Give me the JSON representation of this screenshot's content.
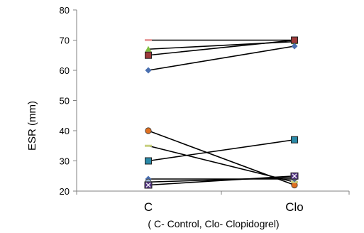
{
  "chart_data": {
    "type": "line",
    "title": "",
    "ylabel": "ESR (mm)",
    "xlabel": "( C- Control, Clo- Clopidogrel)",
    "categories": [
      "C",
      "Clo"
    ],
    "ylim": [
      20,
      80
    ],
    "yticks": [
      20,
      30,
      40,
      50,
      60,
      70,
      80
    ],
    "grid": false,
    "series": [
      {
        "values": [
          70,
          70
        ],
        "marker": "dash",
        "color": "#e8a0a0"
      },
      {
        "values": [
          67,
          69.5
        ],
        "marker": "triangle",
        "color": "#7fbf3f"
      },
      {
        "values": [
          65,
          70
        ],
        "marker": "square",
        "color": "#9e3a3a"
      },
      {
        "values": [
          60,
          68
        ],
        "marker": "diamond",
        "color": "#4a6fb0"
      },
      {
        "values": [
          40,
          22
        ],
        "marker": "circle",
        "color": "#e07020"
      },
      {
        "values": [
          35,
          23
        ],
        "marker": "dash",
        "color": "#c8d080"
      },
      {
        "values": [
          30,
          37
        ],
        "marker": "square",
        "color": "#2a8aa8"
      },
      {
        "values": [
          24,
          24
        ],
        "marker": "diamond",
        "color": "#4a6fb0"
      },
      {
        "values": [
          23,
          24.5
        ],
        "marker": "circle",
        "color": "#a0b8d8"
      },
      {
        "values": [
          22,
          25
        ],
        "marker": "x",
        "color": "#5a3a8a"
      }
    ]
  }
}
